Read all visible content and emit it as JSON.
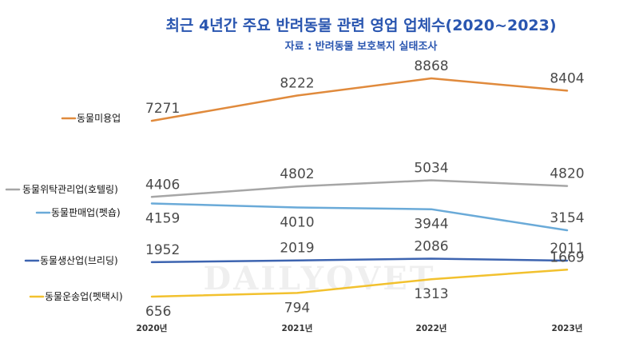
{
  "watermark": "DAILYOVET",
  "chart_data": {
    "type": "line",
    "title": "최근 4년간 주요 반려동물 관련 영업 업체수(2020~2023)",
    "subtitle": "자료 : 반려동물 보호복지 실태조사",
    "categories": [
      "2020년",
      "2021년",
      "2022년",
      "2023년"
    ],
    "grid": false,
    "legend_placement": "left",
    "series": [
      {
        "name": "동물미용업",
        "color": "#e08a3c",
        "values": [
          7271,
          8222,
          8868,
          8404
        ],
        "label_side": [
          "above",
          "above",
          "above",
          "above"
        ]
      },
      {
        "name": "동물위탁관리업(호텔링)",
        "color": "#a6a6a6",
        "values": [
          4406,
          4802,
          5034,
          4820
        ],
        "label_side": [
          "above",
          "above",
          "above",
          "above"
        ]
      },
      {
        "name": "동물판매업(펫숍)",
        "color": "#6aaad8",
        "values": [
          4159,
          4010,
          3944,
          3154
        ],
        "label_side": [
          "below",
          "below",
          "below",
          "above"
        ]
      },
      {
        "name": "동물생산업(브리딩)",
        "color": "#3d64b0",
        "values": [
          1952,
          2019,
          2086,
          2011
        ],
        "label_side": [
          "above",
          "above",
          "above",
          "above"
        ]
      },
      {
        "name": "동물운송업(펫택시)",
        "color": "#f2c12e",
        "values": [
          656,
          794,
          1313,
          1669
        ],
        "label_side": [
          "below",
          "below",
          "below",
          "above"
        ]
      }
    ]
  }
}
